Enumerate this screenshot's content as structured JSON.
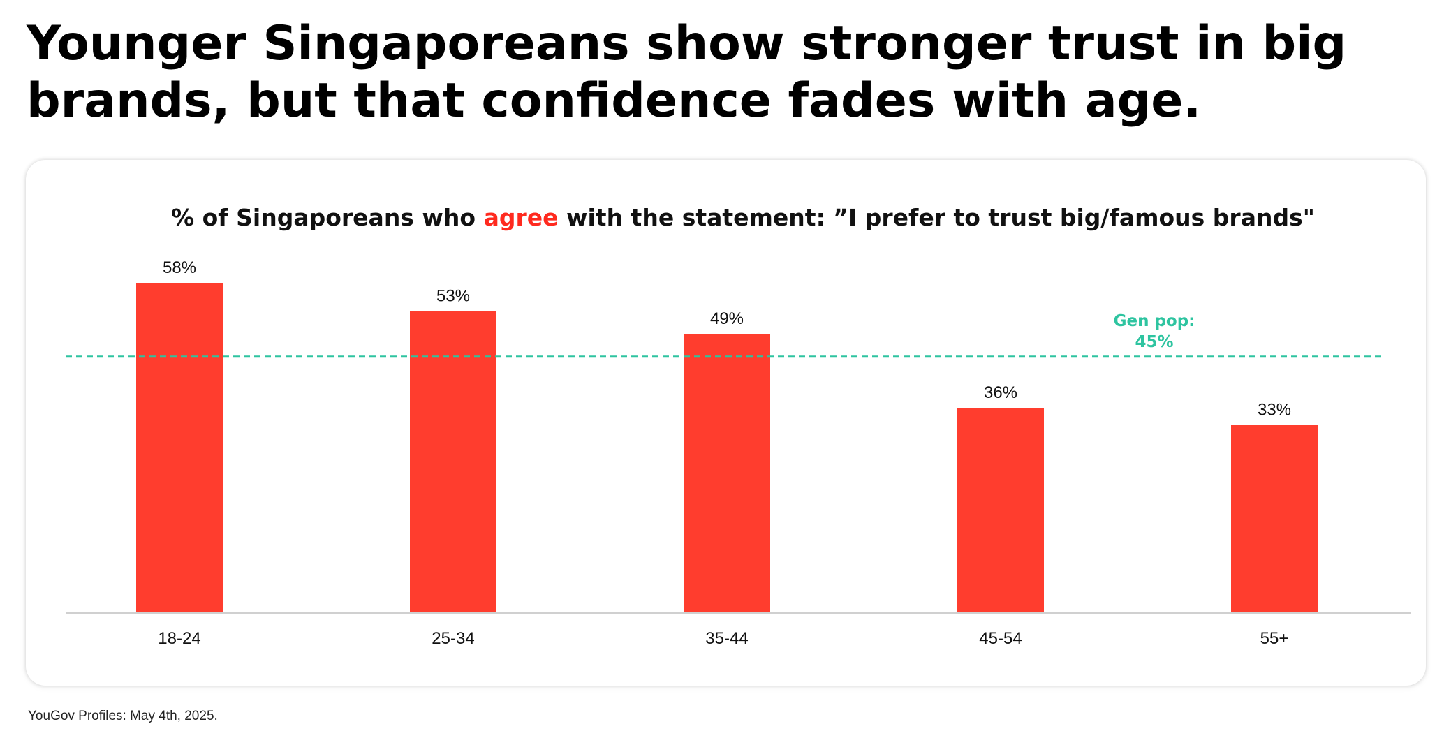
{
  "headline": "Younger Singaporeans show stronger trust in big brands, but that confidence fades with age.",
  "subtitle": {
    "before": "% of Singaporeans who ",
    "highlight": "agree",
    "after": " with the statement: ”I prefer to trust big/famous brands\""
  },
  "source": "YouGov Profiles: May 4th, 2025.",
  "colors": {
    "bar": "#ff3d2e",
    "highlight": "#ff2a1f",
    "reference_line": "#2ec4a0",
    "axis": "#d0d0d0"
  },
  "chart_data": {
    "type": "bar",
    "categories": [
      "18-24",
      "25-34",
      "35-44",
      "45-54",
      "55+"
    ],
    "values": [
      58,
      53,
      49,
      36,
      33
    ],
    "value_labels": [
      "58%",
      "53%",
      "49%",
      "36%",
      "33%"
    ],
    "ylim": [
      0,
      58
    ],
    "grid": false,
    "legend": "none",
    "reference_line": {
      "value": 45,
      "label_line1": "Gen pop:",
      "label_line2": "45%"
    }
  }
}
